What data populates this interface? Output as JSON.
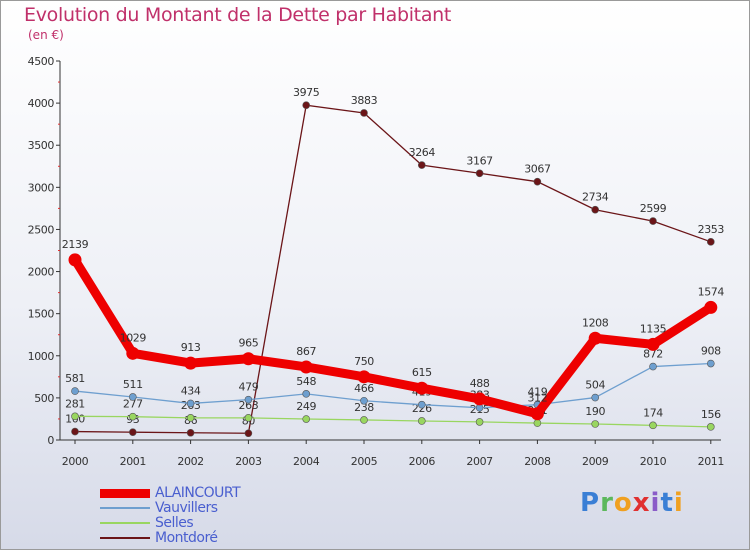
{
  "chart_data": {
    "type": "line",
    "title": "Evolution du Montant de la Dette par Habitant",
    "subtitle": "(en €)",
    "x": [
      "2000",
      "2001",
      "2002",
      "2003",
      "2004",
      "2005",
      "2006",
      "2007",
      "2008",
      "2009",
      "2010",
      "2011"
    ],
    "ylim": [
      0,
      4500
    ],
    "yticks": [
      0,
      500,
      1000,
      1500,
      2000,
      2500,
      3000,
      3500,
      4000,
      4500
    ],
    "grid": false,
    "series": [
      {
        "name": "Montdoré",
        "color": "#6b1518",
        "values": [
          100,
          93,
          86,
          80,
          3975,
          3883,
          3264,
          3167,
          3067,
          2734,
          2599,
          2353
        ],
        "labels": [
          "100",
          "93",
          "86",
          "80",
          "3975",
          "3883",
          "3264",
          "3167",
          "3067",
          "2734",
          "2599",
          "2353"
        ]
      },
      {
        "name": "Selles",
        "color": "#99d660",
        "values": [
          281,
          277,
          263,
          263,
          249,
          238,
          226,
          215,
          201,
          190,
          174,
          156
        ],
        "labels": [
          "281",
          "277",
          "263",
          "263",
          "249",
          "238",
          "226",
          "215",
          "201",
          "190",
          "174",
          "156"
        ]
      },
      {
        "name": "Vauvillers",
        "color": "#6e9fcf",
        "values": [
          581,
          511,
          434,
          479,
          548,
          466,
          419,
          383,
          419,
          504,
          872,
          908
        ],
        "labels": [
          "581",
          "511",
          "434",
          "479",
          "548",
          "466",
          "419",
          "383",
          "419",
          "504",
          "872",
          "908"
        ]
      },
      {
        "name": "ALAINCOURT",
        "color": "#ee0000",
        "values": [
          2139,
          1029,
          913,
          965,
          867,
          750,
          615,
          488,
          312,
          1208,
          1135,
          1574
        ],
        "labels": [
          "2139",
          "1029",
          "913",
          "965",
          "867",
          "750",
          "615",
          "488",
          "312",
          "1208",
          "1135",
          "1574"
        ]
      }
    ],
    "legend_order": [
      "ALAINCOURT",
      "Vauvillers",
      "Selles",
      "Montdoré"
    ]
  },
  "logo": {
    "text": "Proxiti",
    "letters": [
      "P",
      "r",
      "o",
      "x",
      "i",
      "t",
      "i"
    ],
    "colors": [
      "#3a7fd5",
      "#5cb85c",
      "#f0a020",
      "#e03030",
      "#8a5cc8",
      "#3a7fd5",
      "#f0a020"
    ]
  }
}
